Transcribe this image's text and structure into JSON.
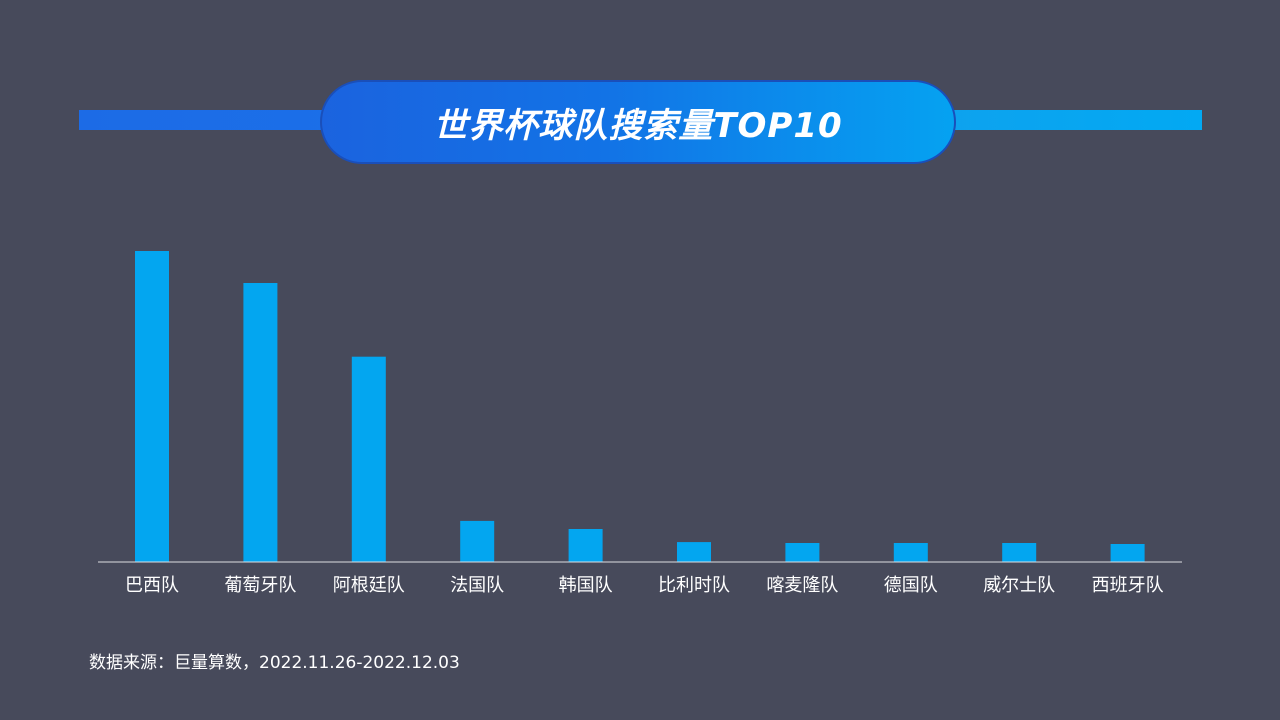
{
  "title": "世界杯球队搜索量TOP10",
  "source": "数据来源：巨量算数，2022.11.26-2022.12.03",
  "colors": {
    "background": "#474a5b",
    "bar": "#03a6f0",
    "axis": "#dcdde2"
  },
  "chart_data": {
    "type": "bar",
    "title": "世界杯球队搜索量TOP10",
    "categories": [
      "巴西队",
      "葡萄牙队",
      "阿根廷队",
      "法国队",
      "韩国队",
      "比利时队",
      "喀麦隆队",
      "德国队",
      "威尔士队",
      "西班牙队"
    ],
    "values": [
      100,
      89.7,
      66.0,
      13.2,
      10.6,
      6.4,
      6.1,
      6.1,
      6.1,
      5.8
    ],
    "xlabel": "",
    "ylabel": "",
    "ylim": [
      0,
      100
    ],
    "grid": false,
    "legend": "none"
  }
}
